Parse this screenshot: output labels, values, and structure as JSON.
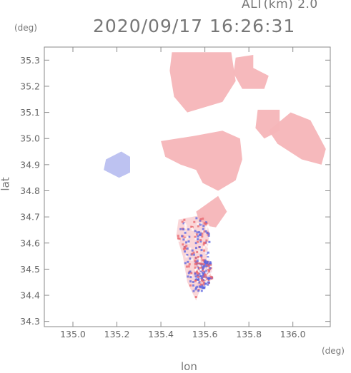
{
  "header": {
    "altitude": "ALT(km) 2.0",
    "timestamp": "2020/09/17 16:26:31"
  },
  "axes": {
    "lat_unit": "(deg)",
    "lon_unit": "(deg)",
    "xlabel": "lon",
    "ylabel": "lat"
  },
  "chart_data": {
    "type": "heatmap",
    "xlabel": "lon",
    "ylabel": "lat",
    "x_unit": "deg",
    "y_unit": "deg",
    "xlim": [
      134.87,
      136.17
    ],
    "ylim": [
      34.28,
      35.35
    ],
    "x_ticks": [
      "135.0",
      "135.2",
      "135.4",
      "135.6",
      "135.8",
      "136.0"
    ],
    "y_ticks": [
      "34.3",
      "34.4",
      "34.5",
      "34.6",
      "34.7",
      "34.8",
      "34.9",
      "35.0",
      "35.1",
      "35.2",
      "35.3"
    ],
    "colors": {
      "positive": "#f5b5b8",
      "negative": "#b9bff0",
      "strong_positive": "#e8646c",
      "strong_negative": "#5a63e0",
      "frame": "#888888"
    },
    "regions": [
      {
        "sign": "positive",
        "intensity": 0.4,
        "polygon": [
          [
            135.45,
            35.33
          ],
          [
            135.72,
            35.33
          ],
          [
            135.74,
            35.22
          ],
          [
            135.68,
            35.14
          ],
          [
            135.52,
            35.1
          ],
          [
            135.46,
            35.16
          ],
          [
            135.44,
            35.26
          ]
        ]
      },
      {
        "sign": "positive",
        "intensity": 0.4,
        "polygon": [
          [
            135.74,
            35.31
          ],
          [
            135.82,
            35.32
          ],
          [
            135.82,
            35.27
          ],
          [
            135.89,
            35.24
          ],
          [
            135.87,
            35.19
          ],
          [
            135.77,
            35.19
          ],
          [
            135.73,
            35.25
          ]
        ]
      },
      {
        "sign": "positive",
        "intensity": 0.4,
        "polygon": [
          [
            135.84,
            35.11
          ],
          [
            135.94,
            35.11
          ],
          [
            135.94,
            35.03
          ],
          [
            135.87,
            35.0
          ],
          [
            135.83,
            35.04
          ]
        ]
      },
      {
        "sign": "positive",
        "intensity": 0.4,
        "polygon": [
          [
            135.89,
            35.03
          ],
          [
            135.99,
            35.1
          ],
          [
            136.08,
            35.07
          ],
          [
            136.15,
            34.96
          ],
          [
            136.13,
            34.9
          ],
          [
            136.04,
            34.92
          ],
          [
            135.93,
            34.98
          ]
        ]
      },
      {
        "sign": "positive",
        "intensity": 0.45,
        "polygon": [
          [
            135.4,
            34.99
          ],
          [
            135.55,
            35.01
          ],
          [
            135.68,
            35.03
          ],
          [
            135.76,
            35.0
          ],
          [
            135.77,
            34.92
          ],
          [
            135.74,
            34.84
          ],
          [
            135.66,
            34.8
          ],
          [
            135.59,
            34.83
          ],
          [
            135.56,
            34.88
          ],
          [
            135.49,
            34.9
          ],
          [
            135.42,
            34.93
          ]
        ]
      },
      {
        "sign": "negative",
        "intensity": 0.35,
        "polygon": [
          [
            135.15,
            34.92
          ],
          [
            135.22,
            34.95
          ],
          [
            135.26,
            34.93
          ],
          [
            135.26,
            34.87
          ],
          [
            135.21,
            34.85
          ],
          [
            135.14,
            34.88
          ]
        ]
      },
      {
        "sign": "mixed",
        "intensity": 0.6,
        "polygon": [
          [
            135.48,
            34.69
          ],
          [
            135.6,
            34.71
          ],
          [
            135.62,
            34.64
          ],
          [
            135.61,
            34.55
          ],
          [
            135.59,
            34.45
          ],
          [
            135.56,
            34.38
          ],
          [
            135.52,
            34.45
          ],
          [
            135.5,
            34.55
          ],
          [
            135.47,
            34.63
          ]
        ]
      },
      {
        "sign": "mixed",
        "intensity": 0.5,
        "polygon": [
          [
            135.55,
            34.54
          ],
          [
            135.62,
            34.54
          ],
          [
            135.63,
            34.46
          ],
          [
            135.58,
            34.42
          ],
          [
            135.55,
            34.47
          ]
        ]
      },
      {
        "sign": "positive",
        "intensity": 0.45,
        "polygon": [
          [
            135.56,
            34.72
          ],
          [
            135.66,
            34.78
          ],
          [
            135.7,
            34.72
          ],
          [
            135.65,
            34.66
          ],
          [
            135.58,
            34.67
          ]
        ]
      }
    ]
  }
}
